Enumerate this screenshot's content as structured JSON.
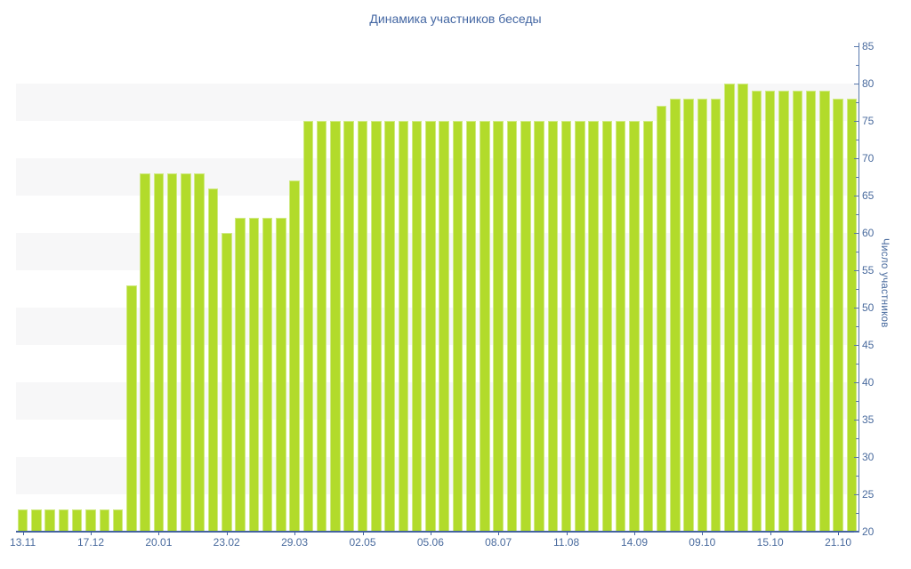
{
  "chart_data": {
    "type": "bar",
    "title": "Динамика участников беседы",
    "ylabel": "Число участников",
    "xlabel": "",
    "ylim": [
      20,
      85
    ],
    "y_tick_step": 5,
    "y_minor_tick_step": 2.5,
    "y_tick_labels": [
      "20",
      "25",
      "30",
      "35",
      "40",
      "45",
      "50",
      "55",
      "60",
      "65",
      "70",
      "75",
      "80",
      "85"
    ],
    "x_tick_labels": [
      "13.11",
      "17.12",
      "20.01",
      "23.02",
      "29.03",
      "02.05",
      "05.06",
      "08.07",
      "11.08",
      "14.09",
      "09.10",
      "15.10",
      "21.10"
    ],
    "label_every_n_bars": 5,
    "bar_count": 62,
    "values": [
      23,
      23,
      23,
      23,
      23,
      23,
      23,
      23,
      53,
      68,
      68,
      68,
      68,
      68,
      66,
      60,
      62,
      62,
      62,
      62,
      67,
      75,
      75,
      75,
      75,
      75,
      75,
      75,
      75,
      75,
      75,
      75,
      75,
      75,
      75,
      75,
      75,
      75,
      75,
      75,
      75,
      75,
      75,
      75,
      75,
      75,
      75,
      77,
      78,
      78,
      78,
      78,
      80,
      80,
      79,
      79,
      79,
      79,
      79,
      79,
      78,
      78
    ],
    "legend": "none",
    "grid": "alternating horizontal bands every 5 units",
    "axis_side": "right",
    "colors": {
      "bar": "#b2db2b",
      "bar_border": "#d0ea84",
      "axis_line": "#5878ac",
      "baseline": "#44639e",
      "text": "#4a6b9e",
      "title_text": "#4467a3",
      "stripe": "#f7f7f8",
      "background": "#ffffff"
    }
  }
}
